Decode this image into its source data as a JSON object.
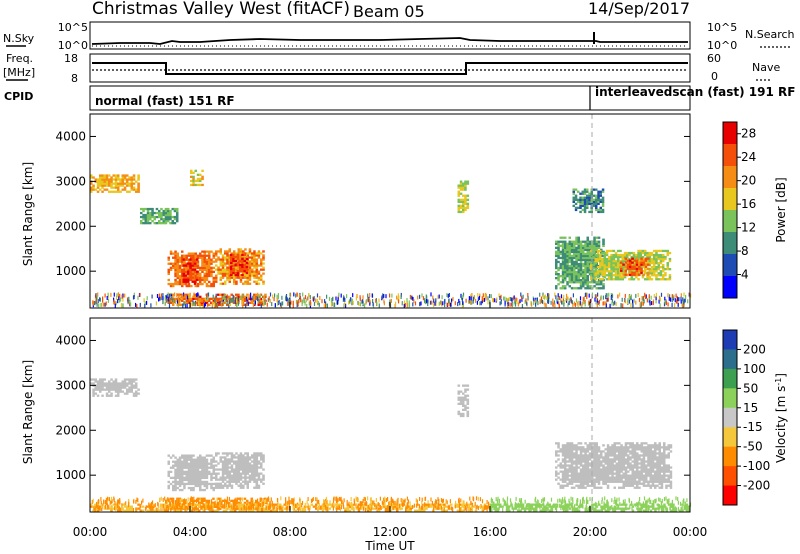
{
  "header": {
    "station": "Christmas Valley West (fitACF)",
    "beam": "Beam 05",
    "date": "14/Sep/2017"
  },
  "top_panels": {
    "nsky_label": "N.Sky",
    "nsky_ticks": [
      "10^5",
      "10^0"
    ],
    "nsearch_label": "N.Search",
    "nsearch_ticks": [
      "10^5",
      "10^0"
    ],
    "freq_label": [
      "Freq.",
      "[MHz]"
    ],
    "freq_ticks": [
      "18",
      "8"
    ],
    "nave_label": "Nave",
    "nave_ticks": [
      "60",
      "0"
    ],
    "cpid_label": "CPID",
    "cpid_segments": [
      {
        "label": "normal (fast) 151 RF",
        "start_h": 0,
        "end_h": 20
      },
      {
        "label": "interleavedscan (fast) 191 RF",
        "start_h": 20,
        "end_h": 24
      }
    ]
  },
  "colors": {
    "power_scale": [
      "#0000ff",
      "#1f4bb4",
      "#3d8c78",
      "#7ac35a",
      "#e8c81e",
      "#f58c14",
      "#f5500a",
      "#e80000"
    ],
    "velocity_scale": [
      "#ff0000",
      "#ff5000",
      "#ff8c00",
      "#f5c83c",
      "#c8c8c8",
      "#8cd25a",
      "#3ca050",
      "#2d6e8c",
      "#1e3cb4"
    ],
    "ground_scatter": "#bebebe"
  },
  "chart_data": [
    {
      "type": "heatmap",
      "panel": "power",
      "xlabel": "Time UT",
      "ylabel": "Slant Range [km]",
      "x_ticks": [
        "00:00",
        "04:00",
        "08:00",
        "12:00",
        "16:00",
        "20:00",
        "00:00"
      ],
      "x_range_h": [
        0,
        24
      ],
      "y_ticks": [
        1000,
        2000,
        3000,
        4000
      ],
      "y_range_km": [
        180,
        4500
      ],
      "colorbar_label": "Power [dB]",
      "colorbar_ticks": [
        4,
        8,
        12,
        16,
        20,
        24,
        28
      ],
      "colorbar_range": [
        0,
        30
      ],
      "marker_time_h": 20,
      "regions": [
        {
          "t0": 0.0,
          "t1": 1.9,
          "r0": 2750,
          "r1": 3150,
          "v": 20
        },
        {
          "t0": 3.1,
          "t1": 4.9,
          "r0": 650,
          "r1": 1450,
          "v": 24
        },
        {
          "t0": 3.7,
          "t1": 4.3,
          "r0": 700,
          "r1": 1250,
          "v": 28
        },
        {
          "t0": 5.0,
          "t1": 6.9,
          "r0": 700,
          "r1": 1500,
          "v": 22
        },
        {
          "t0": 5.6,
          "t1": 6.3,
          "r0": 850,
          "r1": 1350,
          "v": 27
        },
        {
          "t0": 3.1,
          "t1": 7.0,
          "r0": 230,
          "r1": 470,
          "v": 25
        },
        {
          "t0": 2.0,
          "t1": 3.5,
          "r0": 2050,
          "r1": 2400,
          "v": 12
        },
        {
          "t0": 4.0,
          "t1": 4.5,
          "r0": 2900,
          "r1": 3250,
          "v": 18
        },
        {
          "t0": 14.7,
          "t1": 15.1,
          "r0": 2300,
          "r1": 3000,
          "v": 16
        },
        {
          "t0": 18.6,
          "t1": 20.5,
          "r0": 600,
          "r1": 1750,
          "v": 12
        },
        {
          "t0": 20.0,
          "t1": 23.2,
          "r0": 800,
          "r1": 1450,
          "v": 16
        },
        {
          "t0": 21.2,
          "t1": 22.3,
          "r0": 900,
          "r1": 1300,
          "v": 25
        },
        {
          "t0": 19.3,
          "t1": 20.5,
          "r0": 2300,
          "r1": 2800,
          "v": 10
        }
      ]
    },
    {
      "type": "heatmap",
      "panel": "velocity",
      "xlabel": "Time UT",
      "ylabel": "Slant Range [km]",
      "x_ticks": [
        "00:00",
        "04:00",
        "08:00",
        "12:00",
        "16:00",
        "20:00",
        "00:00"
      ],
      "x_range_h": [
        0,
        24
      ],
      "y_ticks": [
        1000,
        2000,
        3000,
        4000
      ],
      "y_range_km": [
        180,
        4500
      ],
      "colorbar_label": "Velocity [m s^-1]",
      "colorbar_ticks": [
        -200,
        -100,
        -50,
        -15,
        15,
        50,
        100,
        200
      ],
      "colorbar_range": [
        -250,
        250
      ],
      "marker_time_h": 20,
      "regions": [
        {
          "t0": 0.0,
          "t1": 1.9,
          "r0": 2750,
          "r1": 3150,
          "v": 0
        },
        {
          "t0": 3.1,
          "t1": 4.9,
          "r0": 650,
          "r1": 1450,
          "v": 0
        },
        {
          "t0": 5.0,
          "t1": 6.9,
          "r0": 700,
          "r1": 1500,
          "v": 0
        },
        {
          "t0": 3.0,
          "t1": 7.0,
          "r0": 230,
          "r1": 460,
          "v": -70
        },
        {
          "t0": 0.0,
          "t1": 16.0,
          "r0": 190,
          "r1": 330,
          "v": -45
        },
        {
          "t0": 14.7,
          "t1": 15.1,
          "r0": 2300,
          "r1": 3000,
          "v": 0
        },
        {
          "t0": 18.6,
          "t1": 23.2,
          "r0": 700,
          "r1": 1700,
          "v": 0
        },
        {
          "t0": 16.0,
          "t1": 24.0,
          "r0": 190,
          "r1": 330,
          "v": 30
        }
      ]
    }
  ]
}
